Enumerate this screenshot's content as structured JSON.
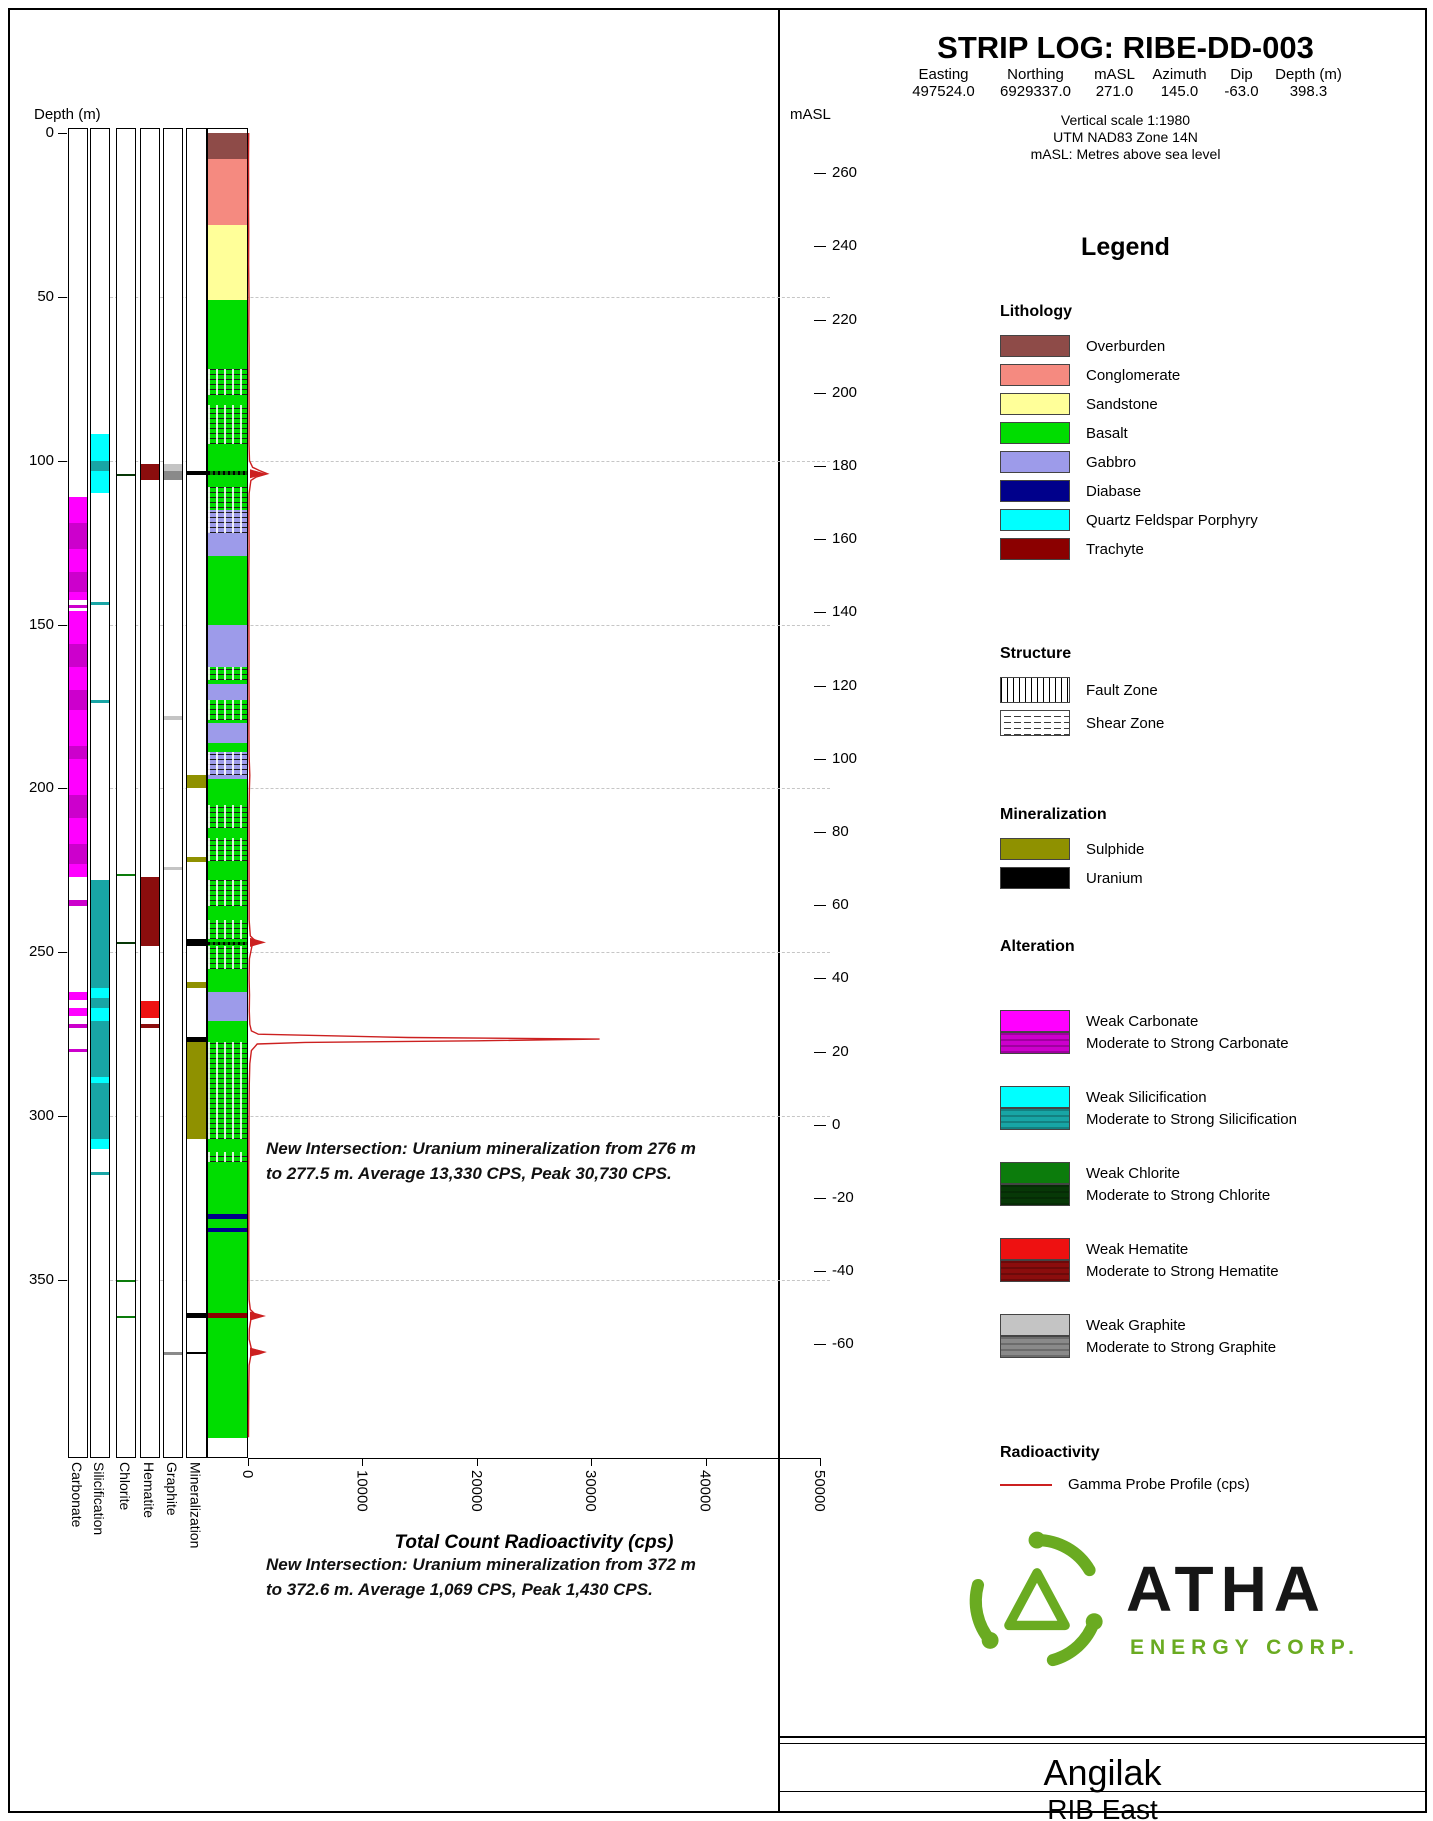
{
  "header": {
    "title": "STRIP LOG: RIBE-DD-003",
    "collar": {
      "columns": [
        "Easting",
        "Northing",
        "mASL",
        "Azimuth",
        "Dip",
        "Depth (m)"
      ],
      "values": [
        "497524.0",
        "6929337.0",
        "271.0",
        "145.0",
        "-63.0",
        "398.3"
      ]
    },
    "scale_lines": [
      "Vertical scale 1:1980",
      "UTM NAD83 Zone 14N",
      "mASL: Metres above sea level"
    ]
  },
  "legend": {
    "title": "Legend",
    "lithology": {
      "heading": "Lithology",
      "items": [
        {
          "label": "Overburden",
          "color": "#8e4b48"
        },
        {
          "label": "Conglomerate",
          "color": "#f58a80"
        },
        {
          "label": "Sandstone",
          "color": "#ffff99"
        },
        {
          "label": "Basalt",
          "color": "#00dd00"
        },
        {
          "label": "Gabbro",
          "color": "#9d9bea"
        },
        {
          "label": "Diabase",
          "color": "#00008b"
        },
        {
          "label": "Quartz Feldspar Porphyry",
          "color": "#00ffff"
        },
        {
          "label": "Trachyte",
          "color": "#8b0000"
        }
      ]
    },
    "structure": {
      "heading": "Structure",
      "items": [
        {
          "label": "Fault Zone",
          "pattern": "fault"
        },
        {
          "label": "Shear Zone",
          "pattern": "shear"
        }
      ]
    },
    "mineralization": {
      "heading": "Mineralization",
      "items": [
        {
          "label": "Sulphide",
          "color": "#8f9100"
        },
        {
          "label": "Uranium",
          "color": "#000000"
        }
      ]
    },
    "alteration": {
      "heading": "Alteration",
      "pairs": [
        {
          "weak_label": "Weak Carbonate",
          "weak_color": "#ff00ff",
          "strong_label": "Moderate to Strong Carbonate",
          "strong_color": "#cc00cc"
        },
        {
          "weak_label": "Weak Silicification",
          "weak_color": "#00ffff",
          "strong_label": "Moderate to Strong Silicification",
          "strong_color": "#18a5a5"
        },
        {
          "weak_label": "Weak Chlorite",
          "weak_color": "#0c7c0c",
          "strong_label": "Moderate to Strong Chlorite",
          "strong_color": "#073807"
        },
        {
          "weak_label": "Weak Hematite",
          "weak_color": "#ee1111",
          "strong_label": "Moderate to Strong Hematite",
          "strong_color": "#8b0d0d"
        },
        {
          "weak_label": "Weak Graphite",
          "weak_color": "#c4c4c4",
          "strong_label": "Moderate to Strong Graphite",
          "strong_color": "#8a8a8a"
        }
      ]
    },
    "radioactivity": {
      "heading": "Radioactivity",
      "line_label": "Gamma Probe Profile (cps)",
      "line_color": "#cc2020"
    }
  },
  "strip": {
    "depth_axis_label": "Depth (m)",
    "masl_axis_label": "mASL",
    "x_axis_label": "Total Count Radioactivity (cps)",
    "column_labels": [
      "Carbonate",
      "Silicification",
      "Chlorite",
      "Hematite",
      "Graphite",
      "Mineralization"
    ],
    "depth_ticks": [
      0,
      50,
      100,
      150,
      200,
      250,
      300,
      350
    ],
    "masl_ticks": [
      260,
      240,
      220,
      200,
      180,
      160,
      140,
      120,
      100,
      80,
      60,
      40,
      20,
      0,
      -20,
      -40,
      -60
    ],
    "cps_ticks": [
      0,
      10000,
      20000,
      30000,
      40000,
      50000
    ]
  },
  "annotations": [
    {
      "line1": "New Intersection: Uranium mineralization from 276 m",
      "line2": "to 277.5 m. Average 13,330 CPS, Peak 30,730 CPS."
    },
    {
      "line1": "New Intersection: Uranium mineralization from 372 m",
      "line2": "to 372.6 m. Average 1,069 CPS, Peak 1,430 CPS."
    }
  ],
  "logo": {
    "name": "ATHA",
    "subtitle": "ENERGY CORP.",
    "green": "#6aab21"
  },
  "footer": {
    "project": "Angilak",
    "area": "RIB East"
  },
  "chart_data": {
    "type": "strip-log",
    "hole_id": "RIBE-DD-003",
    "depth_range_m": [
      0,
      398.3
    ],
    "collar": {
      "easting": 497524.0,
      "northing": 6929337.0,
      "masl": 271.0,
      "azimuth": 145.0,
      "dip": -63.0,
      "depth_m": 398.3
    },
    "colors": {
      "Overburden": "#8e4b48",
      "Conglomerate": "#f58a80",
      "Sandstone": "#ffff99",
      "Basalt": "#00dd00",
      "Gabbro": "#9d9bea",
      "Diabase": "#00008b",
      "Quartz Feldspar Porphyry": "#00ffff",
      "Trachyte": "#8b0000",
      "Sulphide": "#8f9100",
      "Uranium": "#000000",
      "carbonate_weak": "#ff00ff",
      "carbonate_strong": "#cc00cc",
      "silicification_weak": "#00ffff",
      "silicification_strong": "#18a5a5",
      "chlorite_weak": "#0c7c0c",
      "chlorite_strong": "#073807",
      "hematite_weak": "#ee1111",
      "hematite_strong": "#8b0d0d",
      "graphite_weak": "#c4c4c4",
      "graphite_strong": "#8a8a8a",
      "gamma": "#cc2020"
    },
    "lithology_intervals": [
      {
        "from": 0,
        "to": 8,
        "unit": "Overburden"
      },
      {
        "from": 8,
        "to": 28,
        "unit": "Conglomerate"
      },
      {
        "from": 28,
        "to": 51,
        "unit": "Sandstone"
      },
      {
        "from": 51,
        "to": 115,
        "unit": "Basalt"
      },
      {
        "from": 115,
        "to": 129,
        "unit": "Gabbro"
      },
      {
        "from": 129,
        "to": 150,
        "unit": "Basalt"
      },
      {
        "from": 150,
        "to": 163,
        "unit": "Gabbro"
      },
      {
        "from": 163,
        "to": 168,
        "unit": "Basalt"
      },
      {
        "from": 168,
        "to": 173,
        "unit": "Gabbro"
      },
      {
        "from": 173,
        "to": 180,
        "unit": "Basalt"
      },
      {
        "from": 180,
        "to": 186,
        "unit": "Gabbro"
      },
      {
        "from": 186,
        "to": 189,
        "unit": "Basalt"
      },
      {
        "from": 189,
        "to": 197,
        "unit": "Gabbro"
      },
      {
        "from": 197,
        "to": 262,
        "unit": "Basalt"
      },
      {
        "from": 262,
        "to": 271,
        "unit": "Gabbro"
      },
      {
        "from": 271,
        "to": 330,
        "unit": "Basalt"
      },
      {
        "from": 330,
        "to": 331.5,
        "unit": "Diabase"
      },
      {
        "from": 331.5,
        "to": 334,
        "unit": "Basalt"
      },
      {
        "from": 334,
        "to": 335.5,
        "unit": "Diabase"
      },
      {
        "from": 335.5,
        "to": 360,
        "unit": "Basalt"
      },
      {
        "from": 360,
        "to": 361.5,
        "unit": "Trachyte"
      },
      {
        "from": 361.5,
        "to": 398.3,
        "unit": "Basalt"
      }
    ],
    "structure_intervals": [
      {
        "from": 72,
        "to": 80,
        "type": "Shear Zone"
      },
      {
        "from": 83,
        "to": 95,
        "type": "Shear Zone"
      },
      {
        "from": 103,
        "to": 104.5,
        "type": "Fault Zone"
      },
      {
        "from": 108,
        "to": 122,
        "type": "Shear Zone"
      },
      {
        "from": 163,
        "to": 167,
        "type": "Shear Zone"
      },
      {
        "from": 173,
        "to": 179,
        "type": "Shear Zone"
      },
      {
        "from": 189,
        "to": 196,
        "type": "Shear Zone"
      },
      {
        "from": 205,
        "to": 212,
        "type": "Shear Zone"
      },
      {
        "from": 215,
        "to": 222,
        "type": "Shear Zone"
      },
      {
        "from": 228,
        "to": 236,
        "type": "Shear Zone"
      },
      {
        "from": 240,
        "to": 246,
        "type": "Shear Zone"
      },
      {
        "from": 246.8,
        "to": 247.8,
        "type": "Fault Zone"
      },
      {
        "from": 248,
        "to": 255,
        "type": "Shear Zone"
      },
      {
        "from": 277.5,
        "to": 307,
        "type": "Shear Zone"
      },
      {
        "from": 311,
        "to": 314,
        "type": "Shear Zone"
      }
    ],
    "alteration": {
      "carbonate": [
        {
          "from": 111,
          "to": 119,
          "grade": "weak"
        },
        {
          "from": 119,
          "to": 127,
          "grade": "strong"
        },
        {
          "from": 127,
          "to": 134,
          "grade": "weak"
        },
        {
          "from": 134,
          "to": 140,
          "grade": "strong"
        },
        {
          "from": 140,
          "to": 142.5,
          "grade": "weak"
        },
        {
          "from": 144,
          "to": 145,
          "grade": "strong"
        },
        {
          "from": 146,
          "to": 156,
          "grade": "weak"
        },
        {
          "from": 156,
          "to": 163,
          "grade": "strong"
        },
        {
          "from": 163,
          "to": 170,
          "grade": "weak"
        },
        {
          "from": 170,
          "to": 176,
          "grade": "strong"
        },
        {
          "from": 176,
          "to": 187,
          "grade": "weak"
        },
        {
          "from": 187,
          "to": 191,
          "grade": "strong"
        },
        {
          "from": 191,
          "to": 202,
          "grade": "weak"
        },
        {
          "from": 202,
          "to": 209,
          "grade": "strong"
        },
        {
          "from": 209,
          "to": 217,
          "grade": "weak"
        },
        {
          "from": 217,
          "to": 223,
          "grade": "strong"
        },
        {
          "from": 223,
          "to": 227,
          "grade": "weak"
        },
        {
          "from": 234,
          "to": 236,
          "grade": "strong"
        },
        {
          "from": 262,
          "to": 264.5,
          "grade": "weak"
        },
        {
          "from": 267,
          "to": 269.5,
          "grade": "weak"
        },
        {
          "from": 272,
          "to": 273,
          "grade": "strong"
        },
        {
          "from": 279.5,
          "to": 280.5,
          "grade": "strong"
        }
      ],
      "silicification": [
        {
          "from": 92,
          "to": 100,
          "grade": "weak"
        },
        {
          "from": 100,
          "to": 103,
          "grade": "strong"
        },
        {
          "from": 103,
          "to": 110,
          "grade": "weak"
        },
        {
          "from": 143,
          "to": 144,
          "grade": "strong"
        },
        {
          "from": 173,
          "to": 174,
          "grade": "strong"
        },
        {
          "from": 228,
          "to": 261,
          "grade": "strong"
        },
        {
          "from": 261,
          "to": 264,
          "grade": "weak"
        },
        {
          "from": 264,
          "to": 267,
          "grade": "strong"
        },
        {
          "from": 267,
          "to": 271,
          "grade": "weak"
        },
        {
          "from": 271,
          "to": 288,
          "grade": "strong"
        },
        {
          "from": 288,
          "to": 290,
          "grade": "weak"
        },
        {
          "from": 290,
          "to": 307,
          "grade": "strong"
        },
        {
          "from": 307,
          "to": 310,
          "grade": "weak"
        },
        {
          "from": 317,
          "to": 318,
          "grade": "strong"
        }
      ],
      "chlorite": [
        {
          "from": 104,
          "to": 104.6,
          "grade": "strong"
        },
        {
          "from": 226,
          "to": 226.6,
          "grade": "weak"
        },
        {
          "from": 247,
          "to": 247.6,
          "grade": "strong"
        },
        {
          "from": 350,
          "to": 350.6,
          "grade": "weak"
        },
        {
          "from": 361,
          "to": 361.6,
          "grade": "weak"
        }
      ],
      "hematite": [
        {
          "from": 101,
          "to": 106,
          "grade": "strong"
        },
        {
          "from": 227,
          "to": 248,
          "grade": "strong"
        },
        {
          "from": 265,
          "to": 270,
          "grade": "weak"
        },
        {
          "from": 272,
          "to": 273,
          "grade": "strong"
        }
      ],
      "graphite": [
        {
          "from": 101,
          "to": 103,
          "grade": "weak"
        },
        {
          "from": 103,
          "to": 106,
          "grade": "strong"
        },
        {
          "from": 178,
          "to": 179,
          "grade": "weak"
        },
        {
          "from": 224,
          "to": 225,
          "grade": "weak"
        },
        {
          "from": 372,
          "to": 372.8,
          "grade": "strong"
        }
      ]
    },
    "mineralization_intervals": [
      {
        "from": 103,
        "to": 104.5,
        "mineral": "Uranium"
      },
      {
        "from": 196,
        "to": 200,
        "mineral": "Sulphide"
      },
      {
        "from": 221,
        "to": 222.5,
        "mineral": "Sulphide"
      },
      {
        "from": 246,
        "to": 248,
        "mineral": "Uranium"
      },
      {
        "from": 259,
        "to": 261,
        "mineral": "Sulphide"
      },
      {
        "from": 276,
        "to": 277.5,
        "mineral": "Uranium"
      },
      {
        "from": 277.5,
        "to": 307,
        "mineral": "Sulphide"
      },
      {
        "from": 360,
        "to": 361.5,
        "mineral": "Uranium"
      },
      {
        "from": 372,
        "to": 372.6,
        "mineral": "Uranium"
      }
    ],
    "intersections": [
      {
        "from_m": 276,
        "to_m": 277.5,
        "avg_cps": 13330,
        "peak_cps": 30730
      },
      {
        "from_m": 372,
        "to_m": 372.6,
        "avg_cps": 1069,
        "peak_cps": 1430
      }
    ],
    "gamma_profile": {
      "units": "cps",
      "x_range": [
        0,
        50000
      ],
      "spike_marker_depths": [
        104,
        247,
        361,
        372
      ],
      "points": [
        [
          0,
          60
        ],
        [
          8,
          40
        ],
        [
          15,
          55
        ],
        [
          22,
          45
        ],
        [
          30,
          60
        ],
        [
          40,
          50
        ],
        [
          51,
          90
        ],
        [
          58,
          70
        ],
        [
          66,
          95
        ],
        [
          75,
          80
        ],
        [
          85,
          100
        ],
        [
          95,
          85
        ],
        [
          100,
          130
        ],
        [
          102,
          400
        ],
        [
          103,
          1000
        ],
        [
          104,
          1700
        ],
        [
          105,
          700
        ],
        [
          106,
          250
        ],
        [
          110,
          100
        ],
        [
          118,
          80
        ],
        [
          126,
          95
        ],
        [
          134,
          70
        ],
        [
          142,
          85
        ],
        [
          150,
          75
        ],
        [
          158,
          90
        ],
        [
          166,
          75
        ],
        [
          174,
          95
        ],
        [
          182,
          80
        ],
        [
          190,
          95
        ],
        [
          196,
          160
        ],
        [
          200,
          120
        ],
        [
          208,
          85
        ],
        [
          216,
          95
        ],
        [
          224,
          85
        ],
        [
          232,
          95
        ],
        [
          240,
          100
        ],
        [
          245,
          200
        ],
        [
          246,
          500
        ],
        [
          247,
          950
        ],
        [
          248,
          350
        ],
        [
          252,
          120
        ],
        [
          258,
          100
        ],
        [
          263,
          130
        ],
        [
          268,
          110
        ],
        [
          272,
          160
        ],
        [
          274,
          300
        ],
        [
          275,
          900
        ],
        [
          276,
          14000
        ],
        [
          276.5,
          30730
        ],
        [
          277,
          20000
        ],
        [
          277.5,
          5000
        ],
        [
          278,
          800
        ],
        [
          280,
          300
        ],
        [
          284,
          160
        ],
        [
          290,
          110
        ],
        [
          296,
          95
        ],
        [
          302,
          85
        ],
        [
          310,
          75
        ],
        [
          318,
          65
        ],
        [
          326,
          80
        ],
        [
          334,
          70
        ],
        [
          342,
          60
        ],
        [
          350,
          75
        ],
        [
          356,
          95
        ],
        [
          359,
          200
        ],
        [
          360,
          500
        ],
        [
          361,
          750
        ],
        [
          362,
          250
        ],
        [
          365,
          110
        ],
        [
          368,
          95
        ],
        [
          371,
          300
        ],
        [
          372,
          1430
        ],
        [
          372.6,
          950
        ],
        [
          373,
          250
        ],
        [
          376,
          100
        ],
        [
          382,
          70
        ],
        [
          390,
          55
        ],
        [
          398,
          45
        ]
      ]
    }
  }
}
